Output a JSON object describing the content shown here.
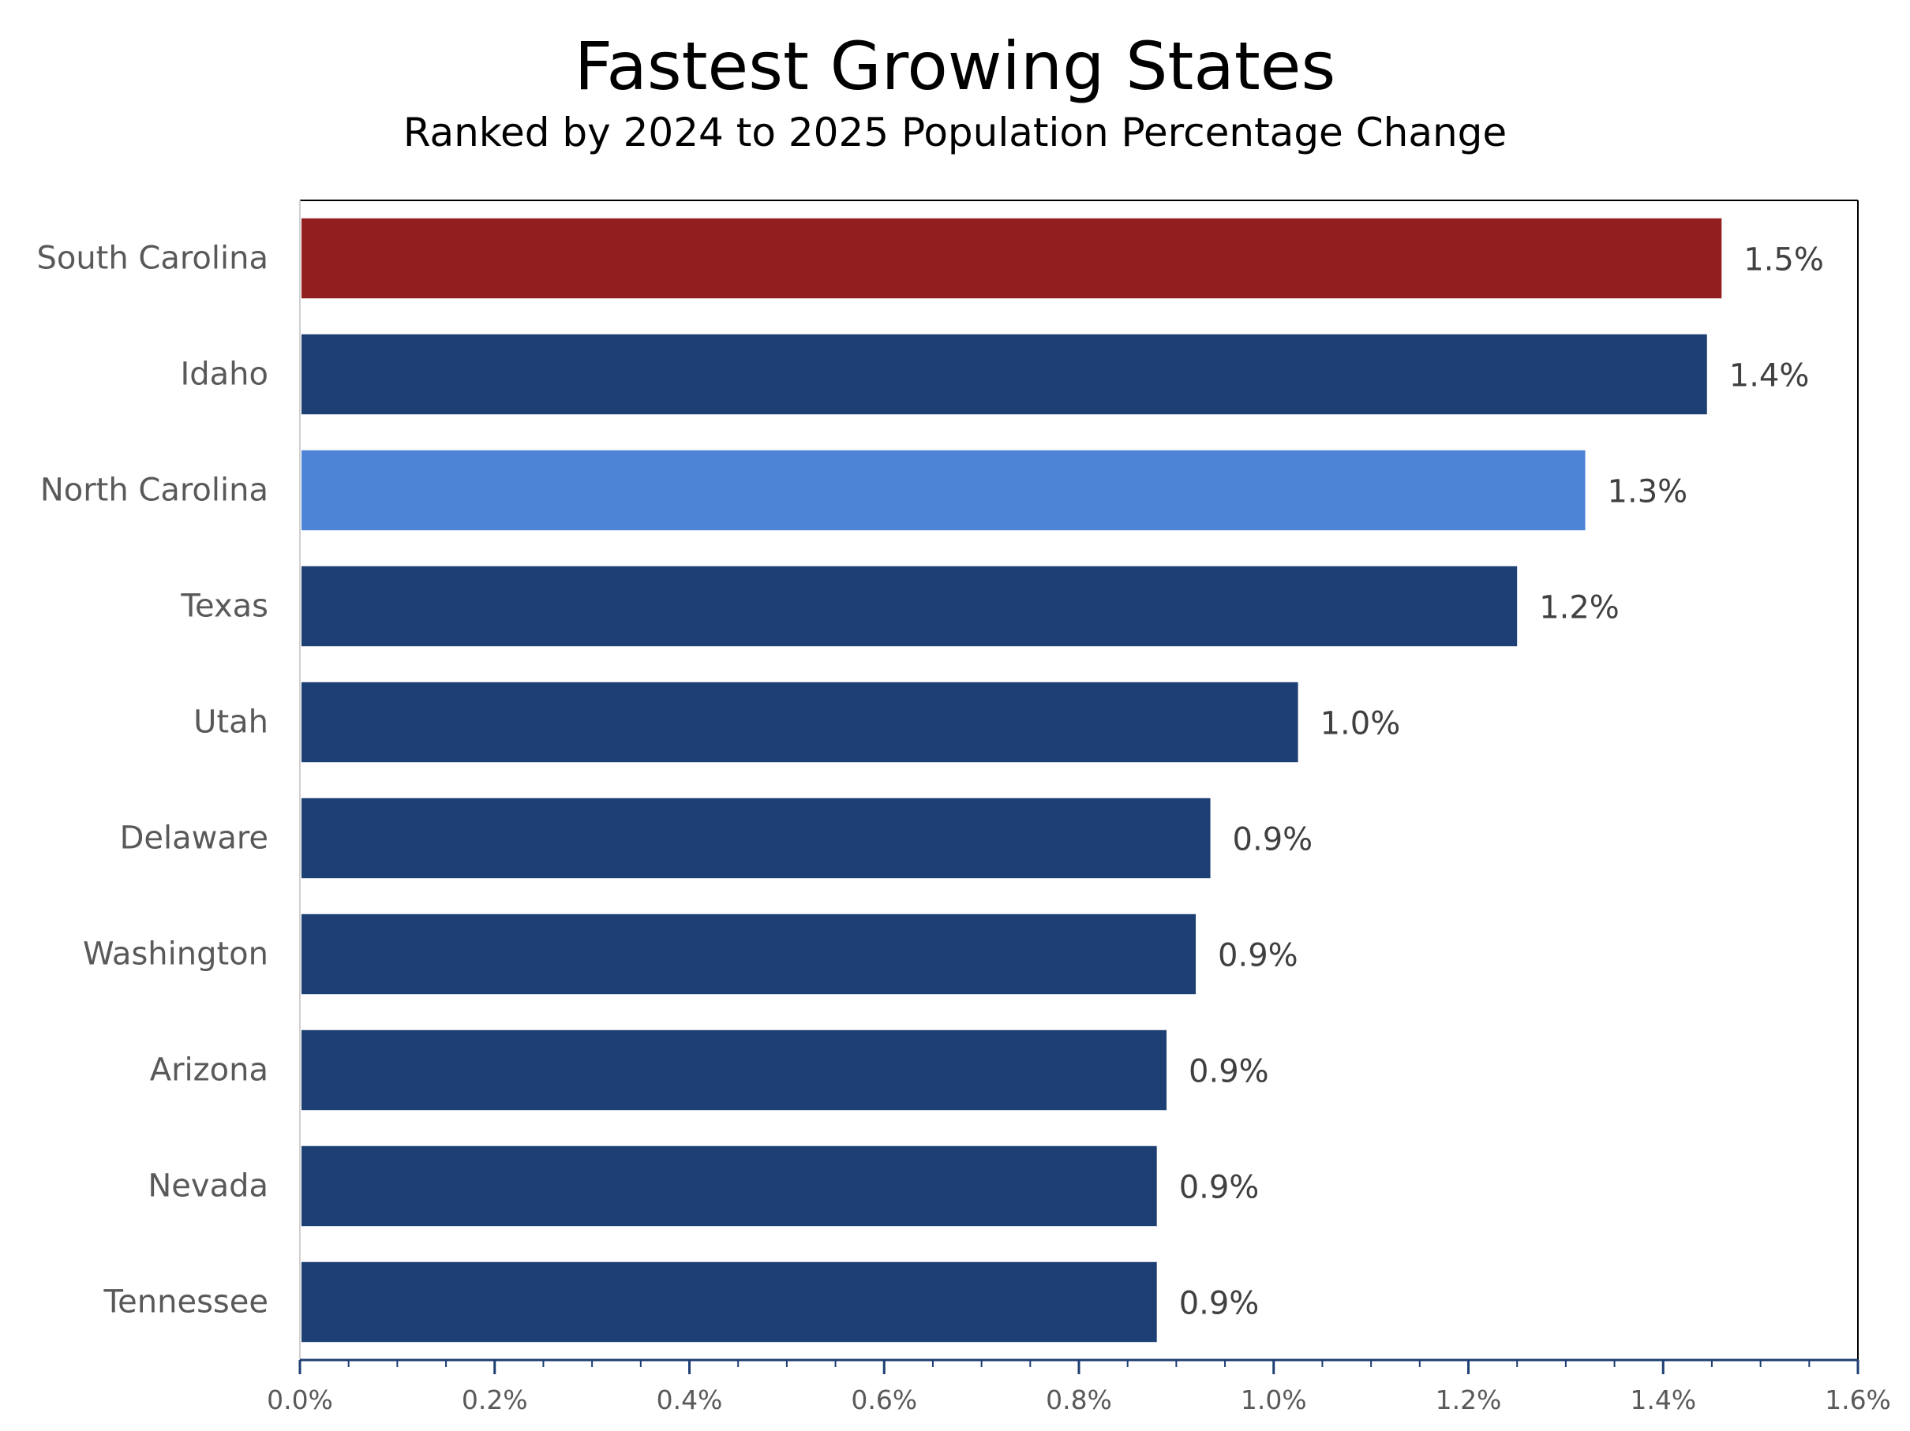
{
  "chart_data": {
    "type": "bar",
    "orientation": "horizontal",
    "title": "Fastest Growing States",
    "subtitle": "Ranked by 2024 to 2025 Population Percentage Change",
    "categories": [
      "South Carolina",
      "Idaho",
      "North Carolina",
      "Texas",
      "Utah",
      "Delaware",
      "Washington",
      "Arizona",
      "Nevada",
      "Tennessee"
    ],
    "values": [
      1.46,
      1.445,
      1.32,
      1.25,
      1.025,
      0.935,
      0.92,
      0.89,
      0.88,
      0.88
    ],
    "data_labels": [
      "1.5%",
      "1.4%",
      "1.3%",
      "1.2%",
      "1.0%",
      "0.9%",
      "0.9%",
      "0.9%",
      "0.9%",
      "0.9%"
    ],
    "bar_colors": [
      "#931E1F",
      "#1E3F73",
      "#4E84D6",
      "#1E3F73",
      "#1E3F73",
      "#1E3F73",
      "#1E3F73",
      "#1E3F73",
      "#1E3F73",
      "#1E3F73"
    ],
    "xlim": [
      0,
      1.6
    ],
    "xticks": [
      0,
      0.2,
      0.4,
      0.6,
      0.8,
      1.0,
      1.2,
      1.4,
      1.6
    ],
    "xtick_labels": [
      "0.0%",
      "0.2%",
      "0.4%",
      "0.6%",
      "0.8%",
      "1.0%",
      "1.2%",
      "1.4%",
      "1.6%"
    ],
    "grid": false,
    "legend": "none",
    "colors": {
      "axis": "#1E3F73",
      "frame": "#000000"
    }
  }
}
